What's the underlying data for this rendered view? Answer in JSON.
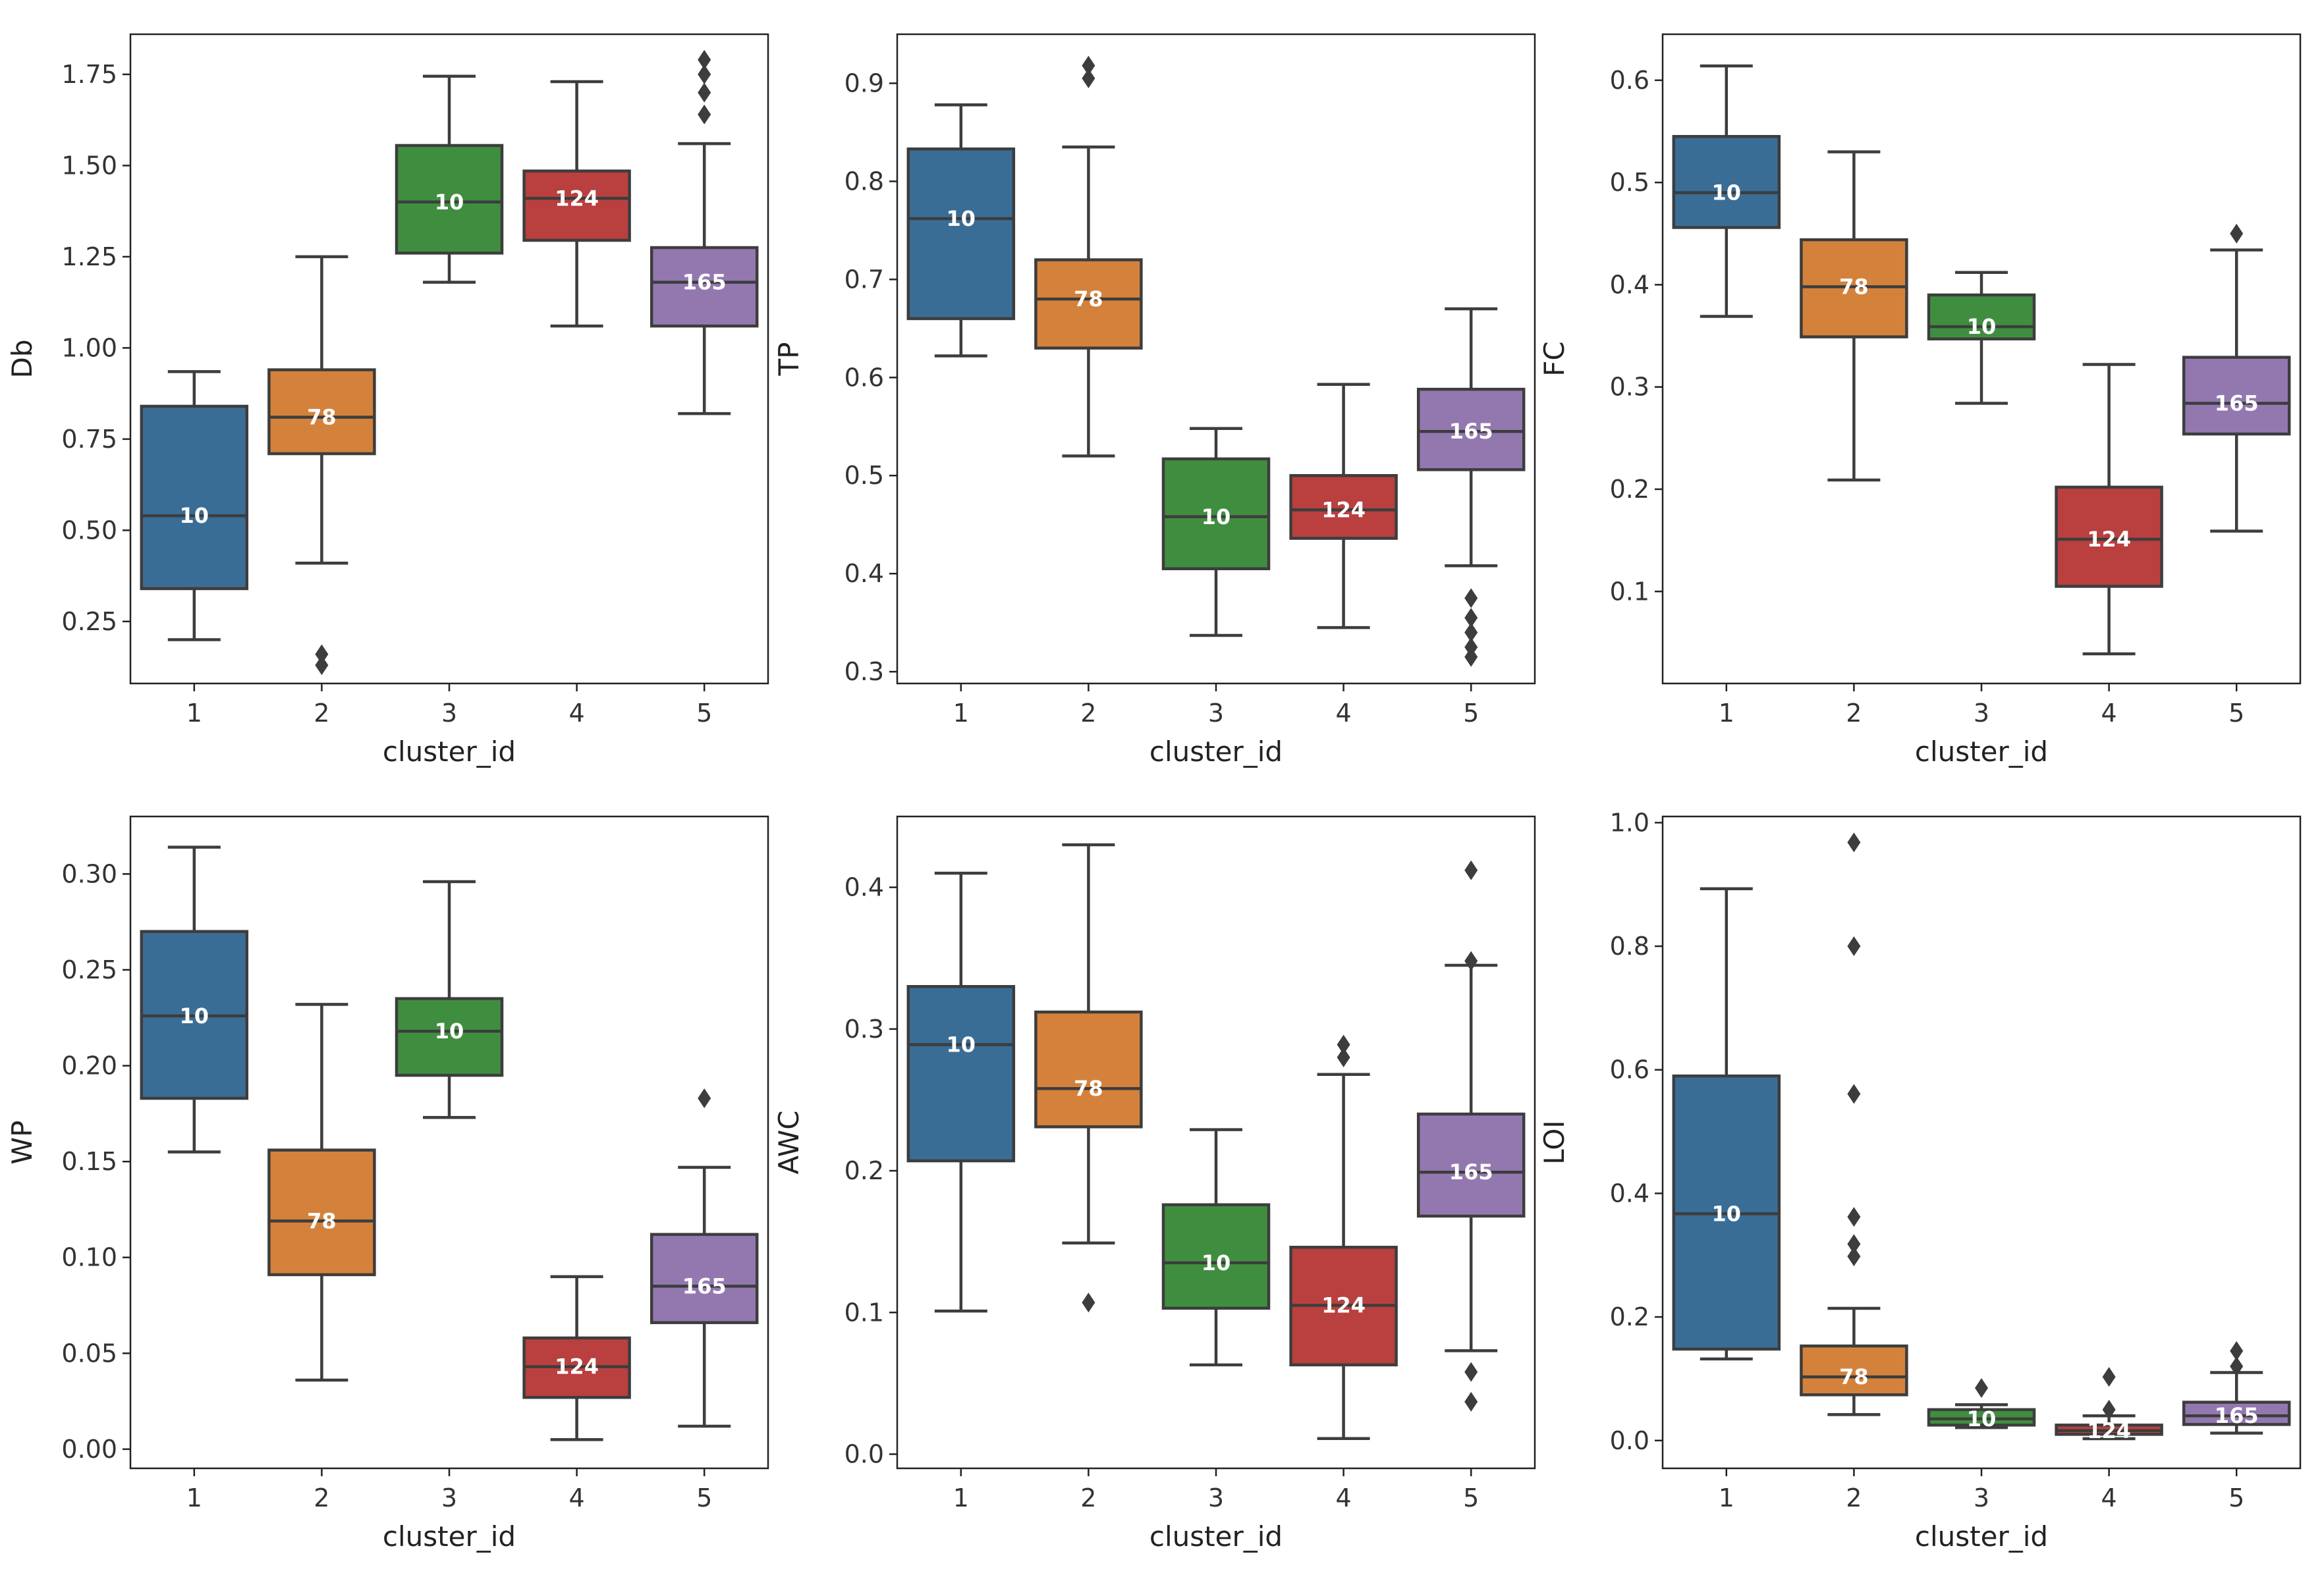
{
  "colors": {
    "cluster_fills": [
      "#3a6d96",
      "#d4823b",
      "#3f8e3f",
      "#b9403f",
      "#9378b0"
    ],
    "box_edge": "#3d3d3d",
    "axes": "#222222",
    "count_label": "#ffffff"
  },
  "chart_data": [
    {
      "type": "box",
      "xlabel": "cluster_id",
      "ylabel": "Db",
      "categories": [
        "1",
        "2",
        "3",
        "4",
        "5"
      ],
      "ylim": [
        0.08,
        1.86
      ],
      "yticks": [
        0.25,
        0.5,
        0.75,
        1.0,
        1.25,
        1.5,
        1.75
      ],
      "ytick_labels": [
        "0.25",
        "0.50",
        "0.75",
        "1.00",
        "1.25",
        "1.50",
        "1.75"
      ],
      "boxes": [
        {
          "whisker_low": 0.2,
          "q1": 0.34,
          "median": 0.54,
          "q3": 0.84,
          "whisker_high": 0.935,
          "outliers": [],
          "count_label": "10"
        },
        {
          "whisker_low": 0.41,
          "q1": 0.71,
          "median": 0.81,
          "q3": 0.94,
          "whisker_high": 1.25,
          "outliers": [
            0.13,
            0.16
          ],
          "count_label": "78"
        },
        {
          "whisker_low": 1.18,
          "q1": 1.26,
          "median": 1.4,
          "q3": 1.555,
          "whisker_high": 1.745,
          "outliers": [],
          "count_label": "10"
        },
        {
          "whisker_low": 1.06,
          "q1": 1.295,
          "median": 1.41,
          "q3": 1.485,
          "whisker_high": 1.73,
          "outliers": [],
          "count_label": "124"
        },
        {
          "whisker_low": 0.82,
          "q1": 1.06,
          "median": 1.18,
          "q3": 1.275,
          "whisker_high": 1.56,
          "outliers": [
            1.64,
            1.7,
            1.75,
            1.79
          ],
          "count_label": "165"
        }
      ]
    },
    {
      "type": "box",
      "xlabel": "cluster_id",
      "ylabel": "TP",
      "categories": [
        "1",
        "2",
        "3",
        "4",
        "5"
      ],
      "ylim": [
        0.288,
        0.95
      ],
      "yticks": [
        0.3,
        0.4,
        0.5,
        0.6,
        0.7,
        0.8,
        0.9
      ],
      "ytick_labels": [
        "0.3",
        "0.4",
        "0.5",
        "0.6",
        "0.7",
        "0.8",
        "0.9"
      ],
      "boxes": [
        {
          "whisker_low": 0.622,
          "q1": 0.66,
          "median": 0.762,
          "q3": 0.833,
          "whisker_high": 0.878,
          "outliers": [],
          "count_label": "10"
        },
        {
          "whisker_low": 0.52,
          "q1": 0.63,
          "median": 0.68,
          "q3": 0.72,
          "whisker_high": 0.835,
          "outliers": [
            0.905,
            0.918
          ],
          "count_label": "78"
        },
        {
          "whisker_low": 0.337,
          "q1": 0.405,
          "median": 0.458,
          "q3": 0.517,
          "whisker_high": 0.548,
          "outliers": [],
          "count_label": "10"
        },
        {
          "whisker_low": 0.345,
          "q1": 0.436,
          "median": 0.465,
          "q3": 0.5,
          "whisker_high": 0.593,
          "outliers": [],
          "count_label": "124"
        },
        {
          "whisker_low": 0.408,
          "q1": 0.506,
          "median": 0.545,
          "q3": 0.588,
          "whisker_high": 0.67,
          "outliers": [
            0.315,
            0.325,
            0.34,
            0.355,
            0.375
          ],
          "count_label": "165"
        }
      ]
    },
    {
      "type": "box",
      "xlabel": "cluster_id",
      "ylabel": "FC",
      "categories": [
        "1",
        "2",
        "3",
        "4",
        "5"
      ],
      "ylim": [
        0.01,
        0.645
      ],
      "yticks": [
        0.1,
        0.2,
        0.3,
        0.4,
        0.5,
        0.6
      ],
      "ytick_labels": [
        "0.1",
        "0.2",
        "0.3",
        "0.4",
        "0.5",
        "0.6"
      ],
      "boxes": [
        {
          "whisker_low": 0.369,
          "q1": 0.456,
          "median": 0.49,
          "q3": 0.545,
          "whisker_high": 0.614,
          "outliers": [],
          "count_label": "10"
        },
        {
          "whisker_low": 0.209,
          "q1": 0.349,
          "median": 0.398,
          "q3": 0.444,
          "whisker_high": 0.53,
          "outliers": [],
          "count_label": "78"
        },
        {
          "whisker_low": 0.284,
          "q1": 0.347,
          "median": 0.359,
          "q3": 0.39,
          "whisker_high": 0.412,
          "outliers": [],
          "count_label": "10"
        },
        {
          "whisker_low": 0.039,
          "q1": 0.105,
          "median": 0.151,
          "q3": 0.202,
          "whisker_high": 0.322,
          "outliers": [],
          "count_label": "124"
        },
        {
          "whisker_low": 0.159,
          "q1": 0.254,
          "median": 0.284,
          "q3": 0.329,
          "whisker_high": 0.434,
          "outliers": [
            0.45
          ],
          "count_label": "165"
        }
      ]
    },
    {
      "type": "box",
      "xlabel": "cluster_id",
      "ylabel": "WP",
      "categories": [
        "1",
        "2",
        "3",
        "4",
        "5"
      ],
      "ylim": [
        -0.01,
        0.33
      ],
      "yticks": [
        0.0,
        0.05,
        0.1,
        0.15,
        0.2,
        0.25,
        0.3
      ],
      "ytick_labels": [
        "0.00",
        "0.05",
        "0.10",
        "0.15",
        "0.20",
        "0.25",
        "0.30"
      ],
      "boxes": [
        {
          "whisker_low": 0.155,
          "q1": 0.183,
          "median": 0.226,
          "q3": 0.27,
          "whisker_high": 0.314,
          "outliers": [],
          "count_label": "10"
        },
        {
          "whisker_low": 0.036,
          "q1": 0.091,
          "median": 0.119,
          "q3": 0.156,
          "whisker_high": 0.232,
          "outliers": [],
          "count_label": "78"
        },
        {
          "whisker_low": 0.173,
          "q1": 0.195,
          "median": 0.218,
          "q3": 0.235,
          "whisker_high": 0.296,
          "outliers": [],
          "count_label": "10"
        },
        {
          "whisker_low": 0.005,
          "q1": 0.027,
          "median": 0.043,
          "q3": 0.058,
          "whisker_high": 0.09,
          "outliers": [],
          "count_label": "124"
        },
        {
          "whisker_low": 0.012,
          "q1": 0.066,
          "median": 0.085,
          "q3": 0.112,
          "whisker_high": 0.147,
          "outliers": [
            0.183
          ],
          "count_label": "165"
        }
      ]
    },
    {
      "type": "box",
      "xlabel": "cluster_id",
      "ylabel": "AWC",
      "categories": [
        "1",
        "2",
        "3",
        "4",
        "5"
      ],
      "ylim": [
        -0.01,
        0.45
      ],
      "yticks": [
        0.0,
        0.1,
        0.2,
        0.3,
        0.4
      ],
      "ytick_labels": [
        "0.0",
        "0.1",
        "0.2",
        "0.3",
        "0.4"
      ],
      "boxes": [
        {
          "whisker_low": 0.101,
          "q1": 0.207,
          "median": 0.289,
          "q3": 0.33,
          "whisker_high": 0.41,
          "outliers": [],
          "count_label": "10"
        },
        {
          "whisker_low": 0.149,
          "q1": 0.231,
          "median": 0.258,
          "q3": 0.312,
          "whisker_high": 0.43,
          "outliers": [
            0.107
          ],
          "count_label": "78"
        },
        {
          "whisker_low": 0.063,
          "q1": 0.103,
          "median": 0.135,
          "q3": 0.176,
          "whisker_high": 0.229,
          "outliers": [],
          "count_label": "10"
        },
        {
          "whisker_low": 0.011,
          "q1": 0.063,
          "median": 0.105,
          "q3": 0.146,
          "whisker_high": 0.268,
          "outliers": [
            0.28,
            0.289
          ],
          "count_label": "124"
        },
        {
          "whisker_low": 0.073,
          "q1": 0.168,
          "median": 0.199,
          "q3": 0.24,
          "whisker_high": 0.345,
          "outliers": [
            0.037,
            0.058,
            0.348,
            0.412
          ],
          "count_label": "165"
        }
      ]
    },
    {
      "type": "box",
      "xlabel": "cluster_id",
      "ylabel": "LOI",
      "categories": [
        "1",
        "2",
        "3",
        "4",
        "5"
      ],
      "ylim": [
        -0.045,
        1.01
      ],
      "yticks": [
        0.0,
        0.2,
        0.4,
        0.6,
        0.8,
        1.0
      ],
      "ytick_labels": [
        "0.0",
        "0.2",
        "0.4",
        "0.6",
        "0.8",
        "1.0"
      ],
      "boxes": [
        {
          "whisker_low": 0.132,
          "q1": 0.148,
          "median": 0.367,
          "q3": 0.59,
          "whisker_high": 0.893,
          "outliers": [],
          "count_label": "10"
        },
        {
          "whisker_low": 0.042,
          "q1": 0.074,
          "median": 0.103,
          "q3": 0.153,
          "whisker_high": 0.214,
          "outliers": [
            0.298,
            0.318,
            0.362,
            0.561,
            0.8,
            0.968
          ],
          "count_label": "78"
        },
        {
          "whisker_low": 0.021,
          "q1": 0.025,
          "median": 0.035,
          "q3": 0.05,
          "whisker_high": 0.058,
          "outliers": [
            0.085
          ],
          "count_label": "10"
        },
        {
          "whisker_low": 0.003,
          "q1": 0.01,
          "median": 0.016,
          "q3": 0.025,
          "whisker_high": 0.04,
          "outliers": [
            0.05,
            0.103
          ],
          "count_label": "124"
        },
        {
          "whisker_low": 0.012,
          "q1": 0.026,
          "median": 0.04,
          "q3": 0.062,
          "whisker_high": 0.11,
          "outliers": [
            0.12,
            0.145
          ],
          "count_label": "165"
        }
      ]
    }
  ]
}
